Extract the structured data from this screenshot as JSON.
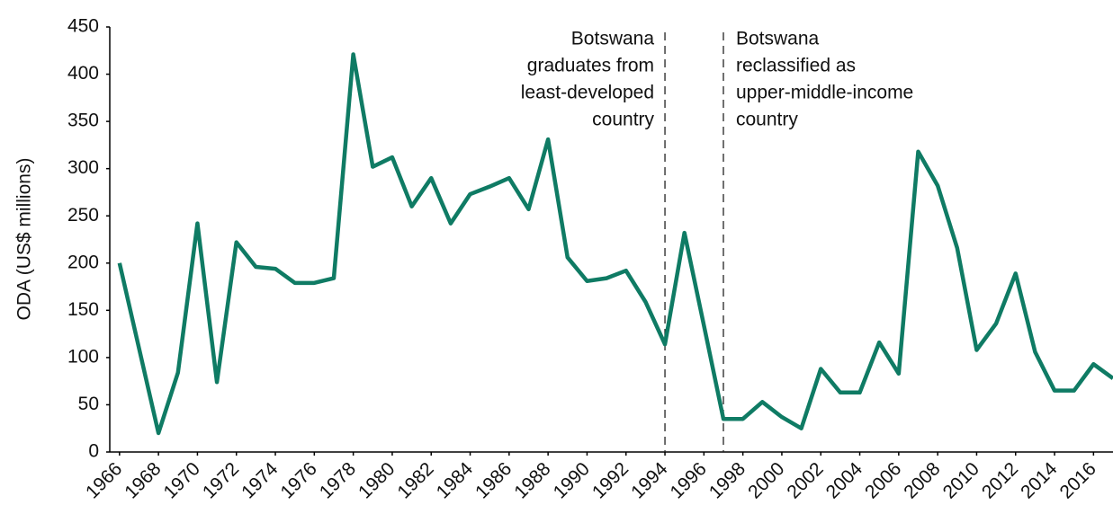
{
  "chart_data": {
    "type": "line",
    "y_label": "ODA (US$ millions)",
    "x": [
      1966,
      1967,
      1968,
      1969,
      1970,
      1971,
      1972,
      1973,
      1974,
      1975,
      1976,
      1977,
      1978,
      1979,
      1980,
      1981,
      1982,
      1983,
      1984,
      1985,
      1986,
      1987,
      1988,
      1989,
      1990,
      1991,
      1992,
      1993,
      1994,
      1995,
      1996,
      1997,
      1998,
      1999,
      2000,
      2001,
      2002,
      2003,
      2004,
      2005,
      2006,
      2007,
      2008,
      2009,
      2010,
      2011,
      2012,
      2013,
      2014,
      2015,
      2016,
      2017
    ],
    "series": [
      {
        "name": "ODA",
        "color": "#0f7b64",
        "values": [
          200,
          110,
          20,
          84,
          242,
          74,
          222,
          196,
          194,
          179,
          179,
          184,
          421,
          302,
          312,
          260,
          290,
          242,
          273,
          281,
          290,
          257,
          331,
          206,
          181,
          184,
          192,
          159,
          114,
          232,
          134,
          35,
          35,
          53,
          37,
          25,
          88,
          63,
          63,
          116,
          83,
          318,
          282,
          216,
          108,
          136,
          189,
          106,
          65,
          65,
          93,
          78
        ]
      }
    ],
    "xlim": [
      1965.5,
      2017
    ],
    "xticks": [
      1966,
      1968,
      1970,
      1972,
      1974,
      1976,
      1978,
      1980,
      1982,
      1984,
      1986,
      1988,
      1990,
      1992,
      1994,
      1996,
      1998,
      2000,
      2002,
      2004,
      2006,
      2008,
      2010,
      2012,
      2014,
      2016
    ],
    "ylim": [
      0,
      450
    ],
    "yticks": [
      0,
      50,
      100,
      150,
      200,
      250,
      300,
      350,
      400,
      450
    ],
    "annotations": [
      {
        "x": 1994,
        "lines": [
          "Botswana",
          "graduates from",
          "least-developed",
          "country"
        ]
      },
      {
        "x": 1997,
        "lines": [
          "Botswana",
          "reclassified as",
          "upper-middle-income",
          "country"
        ]
      }
    ]
  }
}
